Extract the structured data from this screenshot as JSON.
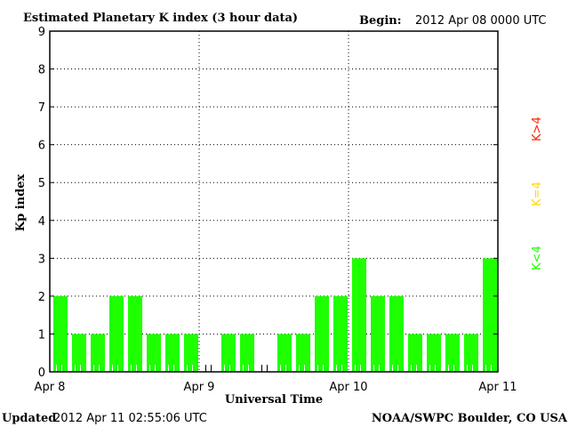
{
  "chart_data": {
    "type": "bar",
    "title": "Estimated Planetary K index (3 hour data)",
    "begin_label": "Begin:",
    "begin_value": "2012 Apr 08 0000 UTC",
    "xlabel": "Universal Time",
    "ylabel": "Kp index",
    "ylim": [
      0,
      9
    ],
    "yticks": [
      "0",
      "1",
      "2",
      "3",
      "4",
      "5",
      "6",
      "7",
      "8",
      "9"
    ],
    "xticks": [
      "Apr 8",
      "Apr 9",
      "Apr 10",
      "Apr 11"
    ],
    "grid": true,
    "values": [
      2,
      1,
      1,
      2,
      2,
      1,
      1,
      1,
      0,
      1,
      1,
      0,
      1,
      1,
      2,
      2,
      3,
      2,
      2,
      1,
      1,
      1,
      1,
      3
    ],
    "bar_color": "#1eff00",
    "legend": [
      {
        "label": "K<4",
        "color": "#1eff00"
      },
      {
        "label": "K=4",
        "color": "#ffd700"
      },
      {
        "label": "K>4",
        "color": "#ff2000"
      }
    ]
  },
  "footer": {
    "updated_label": "Updated",
    "updated_value": "2012 Apr 11 02:55:06 UTC",
    "source": "NOAA/SWPC Boulder, CO USA"
  }
}
